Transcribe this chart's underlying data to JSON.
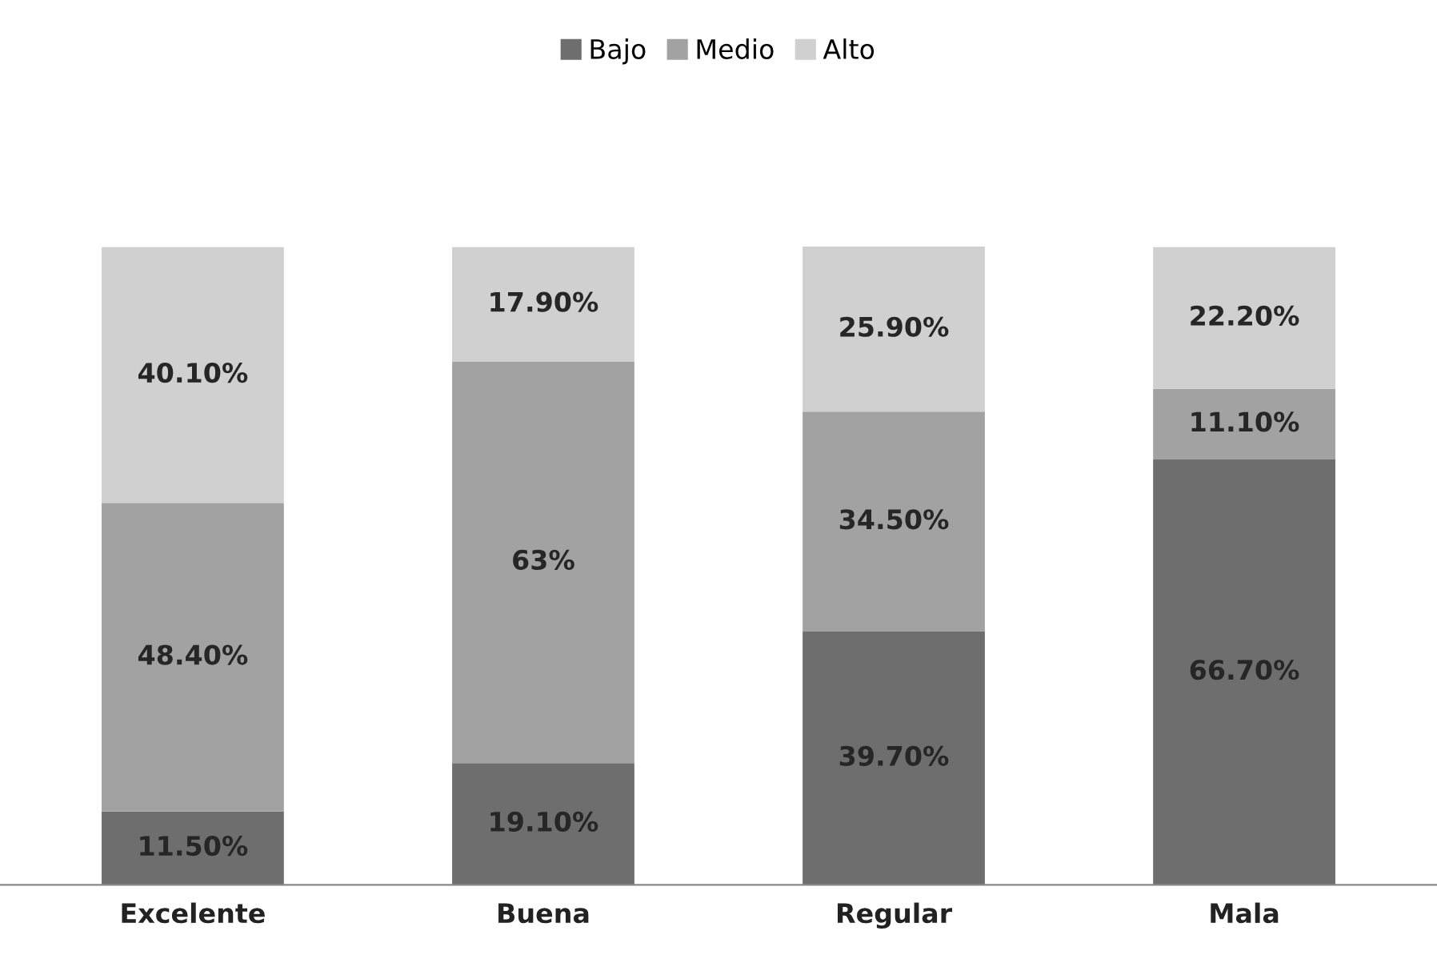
{
  "chart_data": {
    "type": "bar",
    "stacked": true,
    "categories": [
      "Excelente",
      "Buena",
      "Regular",
      "Mala"
    ],
    "series": [
      {
        "name": "Bajo",
        "color": "#6e6e6e",
        "values": [
          11.5,
          19.1,
          39.7,
          66.7
        ],
        "value_labels": [
          "11.50%",
          "19.10%",
          "39.70%",
          "66.70%"
        ]
      },
      {
        "name": "Medio",
        "color": "#a2a2a2",
        "values": [
          48.4,
          63,
          34.5,
          11.1
        ],
        "value_labels": [
          "48.40%",
          "63%",
          "34.50%",
          "11.10%"
        ]
      },
      {
        "name": "Alto",
        "color": "#d0d0d0",
        "values": [
          40.1,
          17.9,
          25.9,
          22.2
        ],
        "value_labels": [
          "40.10%",
          "17.90%",
          "25.90%",
          "22.20%"
        ]
      }
    ],
    "legend": "top",
    "grid": false
  }
}
